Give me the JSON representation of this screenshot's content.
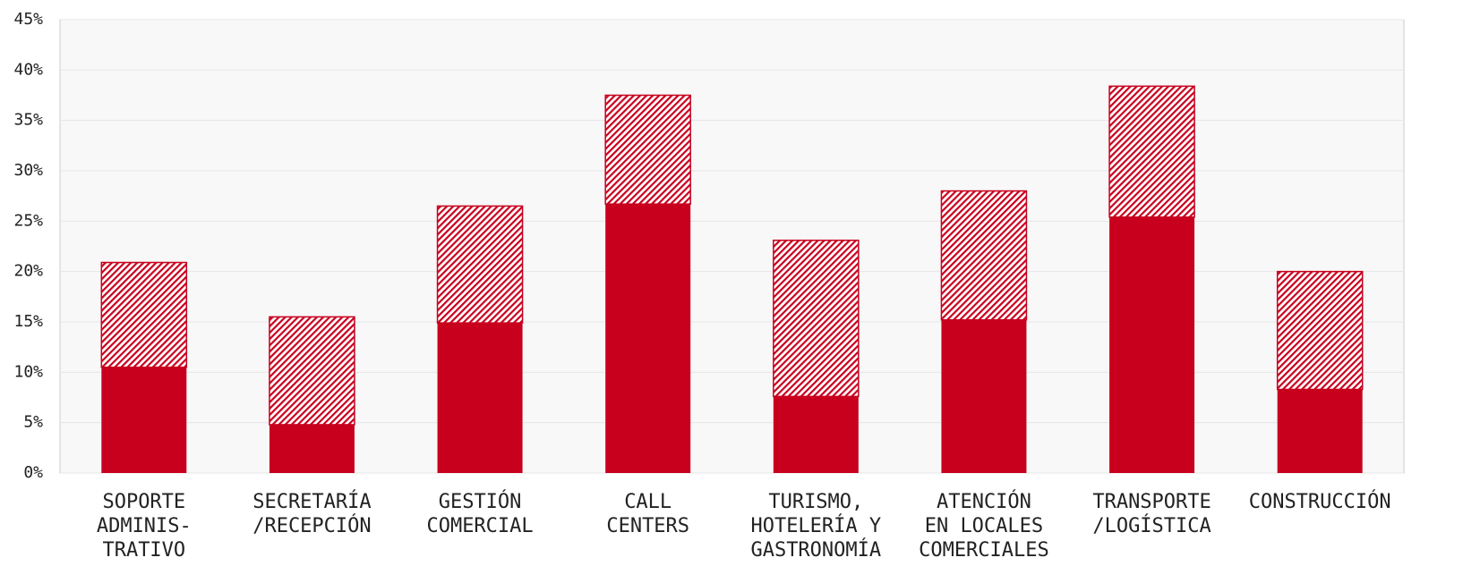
{
  "chart_data": {
    "type": "stacked-bar",
    "categories": [
      [
        "SOPORTE",
        "ADMINIS-",
        "TRATIVO"
      ],
      [
        "SECRETARÍA",
        "/RECEPCIÓN"
      ],
      [
        "GESTIÓN",
        "COMERCIAL"
      ],
      [
        "CALL",
        "CENTERS"
      ],
      [
        "TURISMO,",
        "HOTELERÍA Y",
        "GASTRONOMÍA"
      ],
      [
        "ATENCIÓN",
        "EN LOCALES",
        "COMERCIALES"
      ],
      [
        "TRANSPORTE",
        "/LOGÍSTICA"
      ],
      [
        "CONSTRUCCIÓN"
      ]
    ],
    "series": [
      {
        "color": "#c8001e",
        "fill": "solid",
        "values": [
          10.5,
          4.8,
          14.9,
          26.7,
          7.6,
          15.2,
          25.4,
          8.3
        ]
      },
      {
        "color": "#c8001e",
        "fill": "hatch",
        "values": [
          10.4,
          10.7,
          11.6,
          10.8,
          15.5,
          12.8,
          13.0,
          11.7
        ]
      }
    ],
    "ylim": [
      0,
      45
    ],
    "yticks": [
      {
        "value": 0,
        "label": "0%"
      },
      {
        "value": 5,
        "label": "5%"
      },
      {
        "value": 10,
        "label": "10%"
      },
      {
        "value": 15,
        "label": "15%"
      },
      {
        "value": 20,
        "label": "20%"
      },
      {
        "value": 25,
        "label": "25%"
      },
      {
        "value": 30,
        "label": "30%"
      },
      {
        "value": 35,
        "label": "35%"
      },
      {
        "value": 40,
        "label": "40%"
      },
      {
        "value": 45,
        "label": "45%"
      }
    ],
    "grid": true
  }
}
